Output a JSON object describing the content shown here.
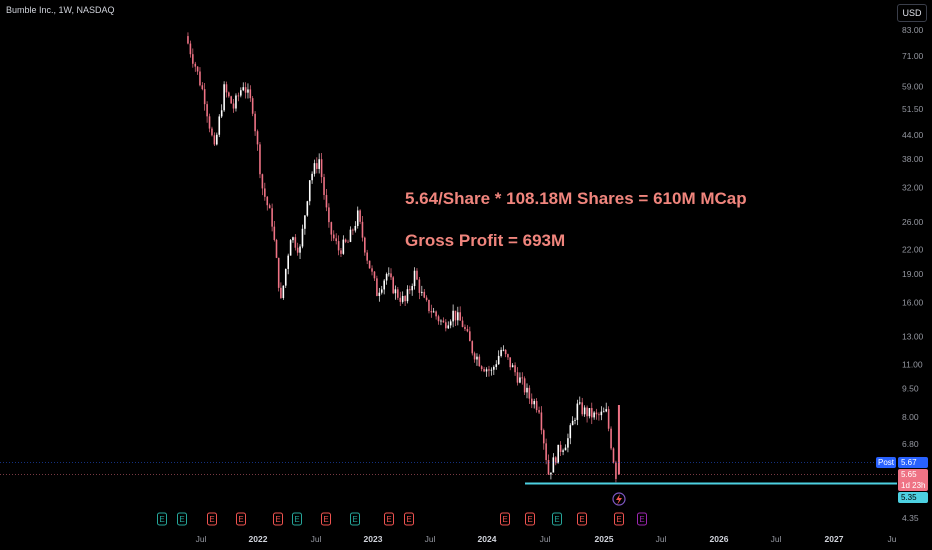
{
  "header": {
    "symbol_title": "Bumble Inc., 1W, NASDAQ",
    "currency_button": "USD"
  },
  "annotations": {
    "line1": "5.64/Share * 108.18M Shares = 610M MCap",
    "line2": "Gross Profit = 693M",
    "color": "#f0857d"
  },
  "price_scale": {
    "post_label": "Post",
    "post_price": "5.67",
    "last_price": "5.65",
    "countdown": "1d 23h",
    "level_price": "5.35"
  },
  "colors": {
    "up_candle": "#ffffff",
    "down_candle": "#ef7385",
    "level_line": "#4dd0e1",
    "earnings_past": "#26a69a",
    "earnings_miss": "#ef5350",
    "earnings_future": "#9c27b0",
    "axis_text": "#9598a1"
  },
  "chart_data": {
    "type": "candlestick",
    "x_axis_type": "time",
    "y_scale": "log",
    "y_ticks": [
      "83.00",
      "71.00",
      "59.00",
      "51.50",
      "44.00",
      "38.00",
      "32.00",
      "26.00",
      "22.00",
      "19.00",
      "16.00",
      "13.00",
      "11.00",
      "9.50",
      "8.00",
      "6.80",
      "5.65",
      "4.35"
    ],
    "x_ticks": [
      "Jul",
      "2022",
      "Jul",
      "2023",
      "Jul",
      "2024",
      "Jul",
      "2025",
      "Jul",
      "2026",
      "Jul",
      "2027",
      "Ju"
    ],
    "price_path": [
      {
        "date": "2021-05",
        "price": 80
      },
      {
        "date": "2021-06",
        "price": 67
      },
      {
        "date": "2021-07",
        "price": 55
      },
      {
        "date": "2021-08",
        "price": 40
      },
      {
        "date": "2021-09",
        "price": 58
      },
      {
        "date": "2021-10",
        "price": 52
      },
      {
        "date": "2021-11",
        "price": 60
      },
      {
        "date": "2021-12",
        "price": 52
      },
      {
        "date": "2022-01",
        "price": 32
      },
      {
        "date": "2022-02",
        "price": 26
      },
      {
        "date": "2022-03",
        "price": 16
      },
      {
        "date": "2022-04",
        "price": 24
      },
      {
        "date": "2022-05",
        "price": 22
      },
      {
        "date": "2022-06",
        "price": 34
      },
      {
        "date": "2022-07",
        "price": 38
      },
      {
        "date": "2022-08",
        "price": 25
      },
      {
        "date": "2022-09",
        "price": 22
      },
      {
        "date": "2022-10",
        "price": 23
      },
      {
        "date": "2022-11",
        "price": 27
      },
      {
        "date": "2022-12",
        "price": 21
      },
      {
        "date": "2023-01",
        "price": 17
      },
      {
        "date": "2023-02",
        "price": 19
      },
      {
        "date": "2023-03",
        "price": 17
      },
      {
        "date": "2023-04",
        "price": 16
      },
      {
        "date": "2023-05",
        "price": 19
      },
      {
        "date": "2023-06",
        "price": 16
      },
      {
        "date": "2023-07",
        "price": 15
      },
      {
        "date": "2023-08",
        "price": 14
      },
      {
        "date": "2023-09",
        "price": 15
      },
      {
        "date": "2023-10",
        "price": 14
      },
      {
        "date": "2023-11",
        "price": 12
      },
      {
        "date": "2023-12",
        "price": 11
      },
      {
        "date": "2024-01",
        "price": 10.5
      },
      {
        "date": "2024-02",
        "price": 12
      },
      {
        "date": "2024-03",
        "price": 11
      },
      {
        "date": "2024-04",
        "price": 10
      },
      {
        "date": "2024-05",
        "price": 9
      },
      {
        "date": "2024-06",
        "price": 8.5
      },
      {
        "date": "2024-07",
        "price": 5.7
      },
      {
        "date": "2024-08",
        "price": 6.5
      },
      {
        "date": "2024-09",
        "price": 7
      },
      {
        "date": "2024-10",
        "price": 8.5
      },
      {
        "date": "2024-11",
        "price": 8.2
      },
      {
        "date": "2024-12",
        "price": 8
      },
      {
        "date": "2025-01",
        "price": 8.2
      },
      {
        "date": "2025-02",
        "price": 5.65
      }
    ],
    "horizontal_level": 5.35,
    "earnings_markers": [
      {
        "label": "E",
        "date": "2021-08",
        "kind": "beat"
      },
      {
        "label": "E",
        "date": "2021-11",
        "kind": "beat"
      },
      {
        "label": "E",
        "date": "2022-03",
        "kind": "miss"
      },
      {
        "label": "E",
        "date": "2022-05",
        "kind": "miss"
      },
      {
        "label": "E",
        "date": "2022-08",
        "kind": "miss"
      },
      {
        "label": "E",
        "date": "2022-11",
        "kind": "beat"
      },
      {
        "label": "E",
        "date": "2023-02",
        "kind": "miss"
      },
      {
        "label": "E",
        "date": "2023-05",
        "kind": "beat"
      },
      {
        "label": "E",
        "date": "2023-08",
        "kind": "miss"
      },
      {
        "label": "E",
        "date": "2023-11",
        "kind": "miss"
      },
      {
        "label": "E",
        "date": "2024-02",
        "kind": "miss"
      },
      {
        "label": "E",
        "date": "2024-05",
        "kind": "miss"
      },
      {
        "label": "E",
        "date": "2024-08",
        "kind": "beat"
      },
      {
        "label": "E",
        "date": "2024-11",
        "kind": "miss"
      },
      {
        "label": "E",
        "date": "2025-02",
        "kind": "miss"
      },
      {
        "label": "E",
        "date": "2025-05",
        "kind": "future"
      }
    ]
  }
}
